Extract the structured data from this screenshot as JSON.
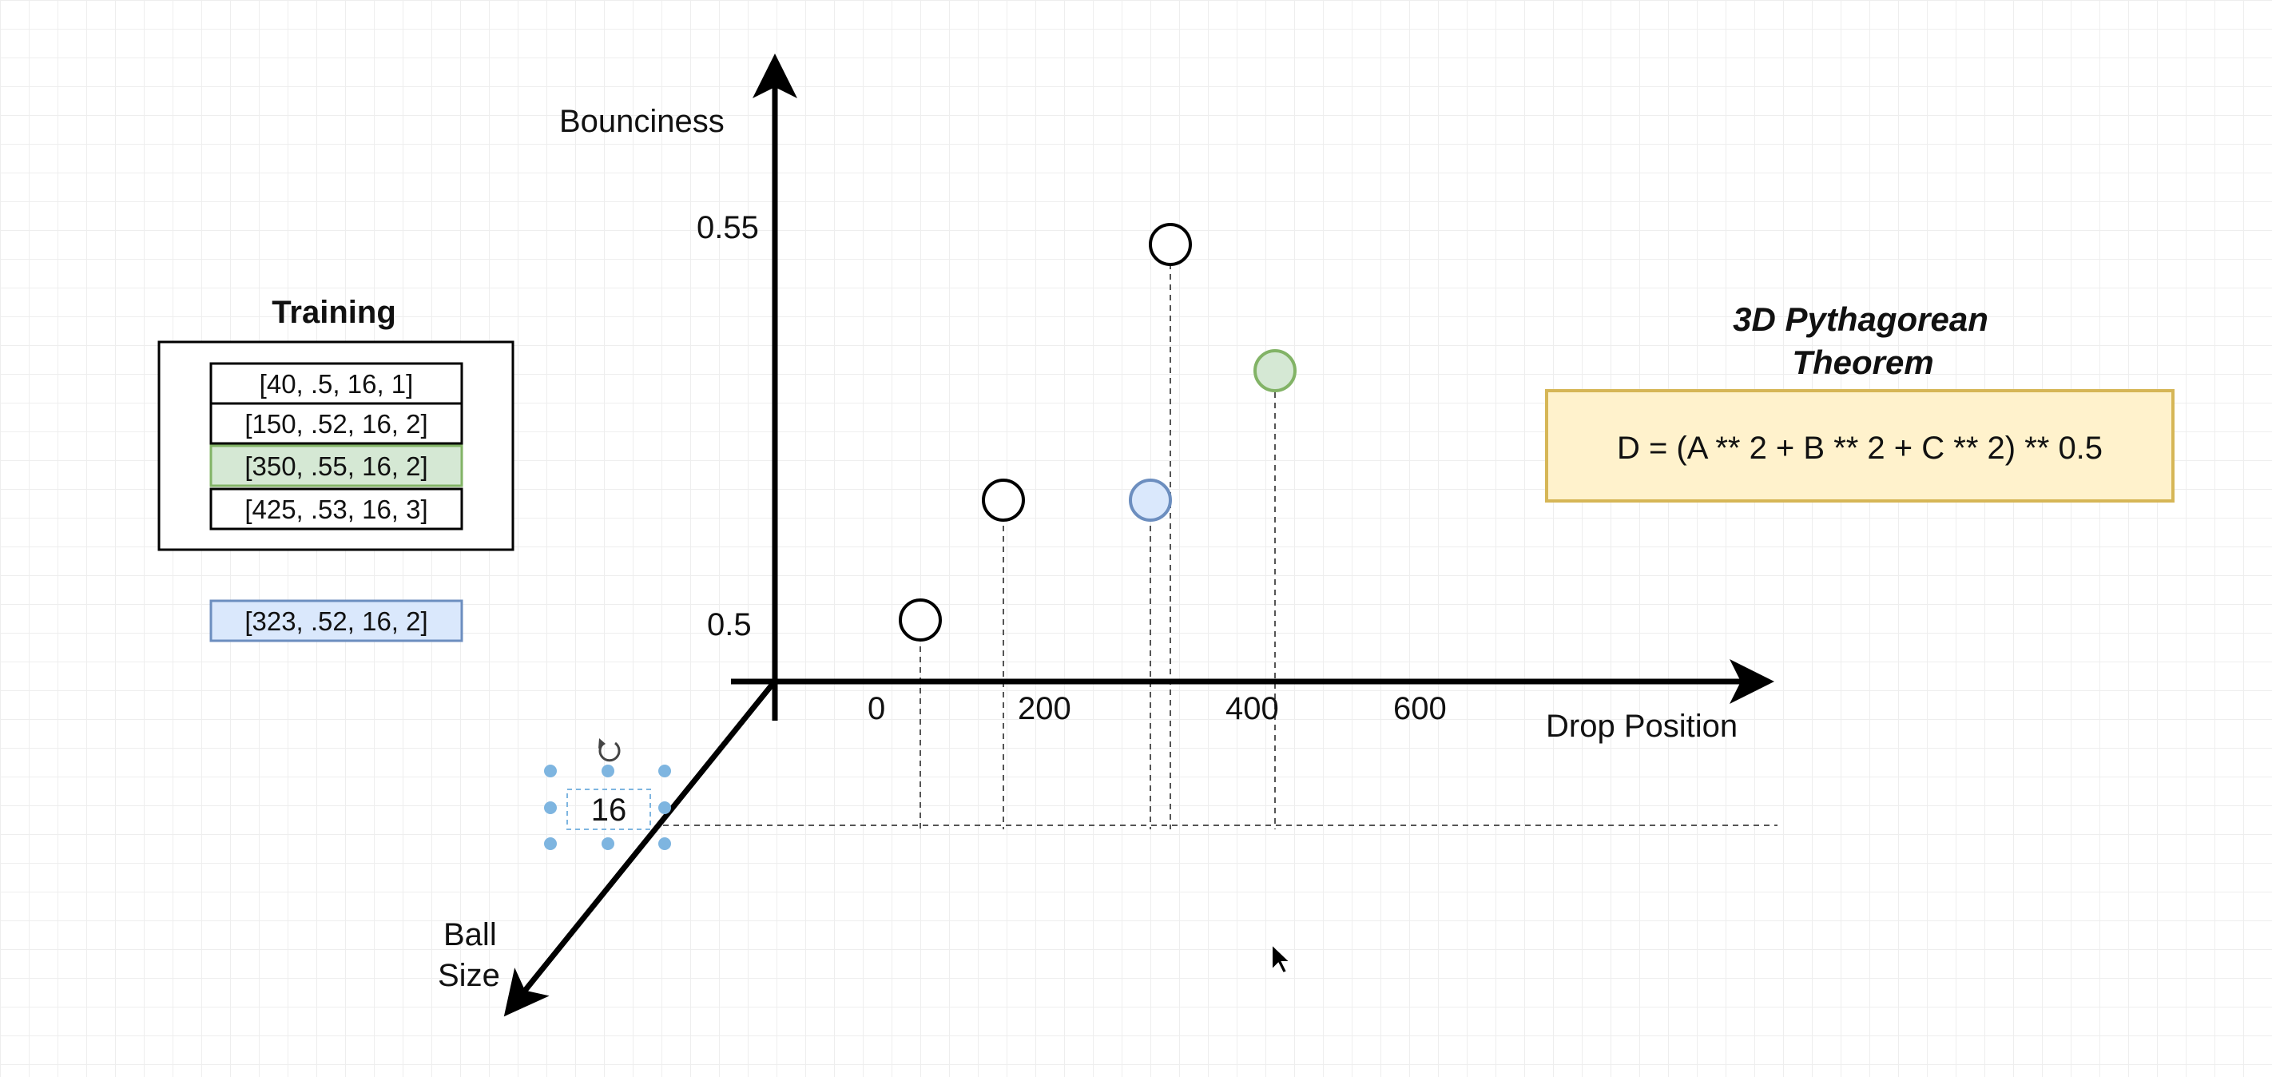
{
  "axes": {
    "y_label": "Bounciness",
    "x_label": "Drop Position",
    "z_label_line1": "Ball",
    "z_label_line2": "Size",
    "y_ticks": [
      "0.55",
      "0.5"
    ],
    "x_ticks": [
      "0",
      "200",
      "400",
      "600"
    ],
    "z_tick": "16"
  },
  "training": {
    "title": "Training",
    "rows": [
      {
        "text": "[40, .5, 16, 1]",
        "highlight": false
      },
      {
        "text": "[150, .52, 16, 2]",
        "highlight": false
      },
      {
        "text": "[350, .55, 16, 2]",
        "highlight": true
      },
      {
        "text": "[425, .53, 16, 3]",
        "highlight": false
      }
    ],
    "test_point": "[323, .52, 16, 2]"
  },
  "theorem": {
    "title_line1": "3D Pythagorean",
    "title_line2": "Theorem",
    "formula": "D = (A ** 2 + B ** 2 + C ** 2) ** 0.5"
  },
  "points": [
    {
      "style": "plain"
    },
    {
      "style": "plain"
    },
    {
      "style": "plain"
    },
    {
      "style": "green"
    },
    {
      "style": "blue"
    }
  ],
  "colors": {
    "green_fill": "#d5e8d4",
    "green_stroke": "#82b366",
    "blue_fill": "#dae8fc",
    "blue_stroke": "#6c8ebf",
    "theorem_fill": "#fff2cc",
    "theorem_stroke": "#d6b656",
    "selection_handle": "#7eb5e0"
  },
  "icons": [
    "rotate-icon",
    "mouse-cursor-icon"
  ]
}
